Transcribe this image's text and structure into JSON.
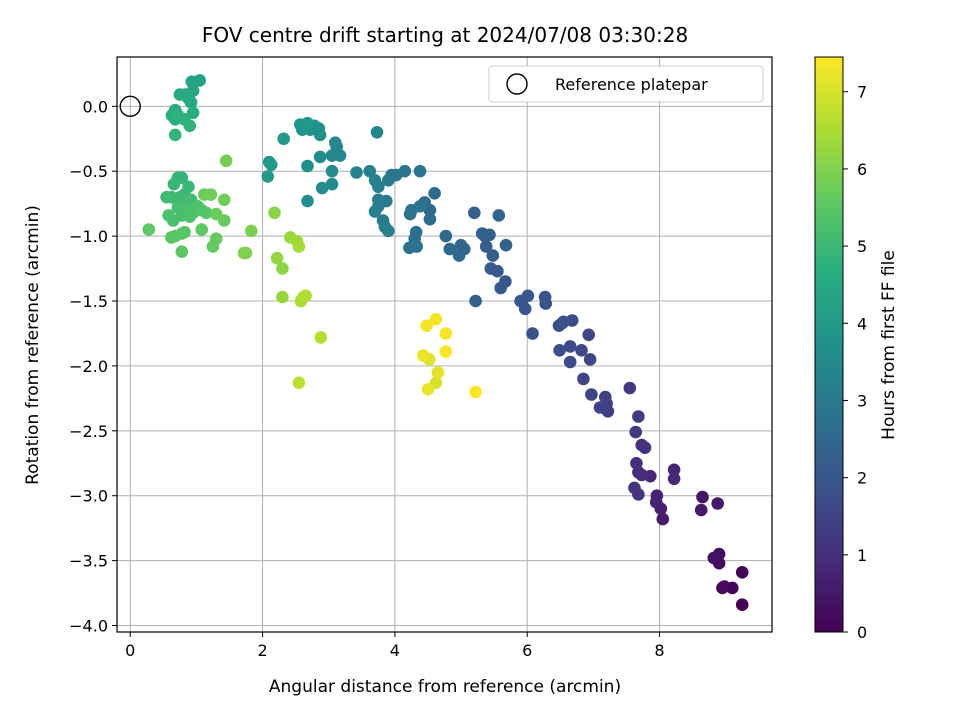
{
  "chart_data": {
    "type": "scatter",
    "title": "FOV centre drift starting at 2024/07/08 03:30:28",
    "xlabel": "Angular distance from reference (arcmin)",
    "ylabel": "Rotation from reference (arcmin)",
    "xlim": [
      -0.2,
      9.7
    ],
    "ylim": [
      -4.05,
      0.38
    ],
    "xticks": [
      0,
      2,
      4,
      6,
      8
    ],
    "yticks": [
      0.0,
      -0.5,
      -1.0,
      -1.5,
      -2.0,
      -2.5,
      -3.0,
      -3.5,
      -4.0
    ],
    "grid": true,
    "legend": {
      "position": "top-right",
      "entries": [
        "Reference platepar"
      ]
    },
    "reference_point": {
      "x": 0.0,
      "y": 0.0,
      "marker": "open-circle"
    },
    "colorbar": {
      "label": "Hours from first FF file",
      "colormap": "viridis",
      "range": [
        0,
        7.45
      ],
      "ticks": [
        0,
        1,
        2,
        3,
        4,
        5,
        6,
        7
      ]
    },
    "color_value": "hours from first FF file",
    "points": [
      [
        9.25,
        -3.84,
        0.0
      ],
      [
        9.25,
        -3.59,
        0.05
      ],
      [
        9.1,
        -3.71,
        0.1
      ],
      [
        8.98,
        -3.7,
        0.15
      ],
      [
        8.95,
        -3.71,
        0.2
      ],
      [
        8.9,
        -3.52,
        0.25
      ],
      [
        8.9,
        -3.45,
        0.3
      ],
      [
        8.82,
        -3.48,
        0.35
      ],
      [
        8.65,
        -3.01,
        0.42
      ],
      [
        8.63,
        -3.11,
        0.5
      ],
      [
        8.88,
        -3.06,
        0.55
      ],
      [
        8.05,
        -3.18,
        0.6
      ],
      [
        8.02,
        -3.1,
        0.65
      ],
      [
        7.96,
        -3.0,
        0.7
      ],
      [
        7.95,
        -3.05,
        0.75
      ],
      [
        7.86,
        -2.85,
        0.8
      ],
      [
        8.22,
        -2.8,
        0.82
      ],
      [
        8.22,
        -2.87,
        0.85
      ],
      [
        7.73,
        -2.84,
        0.9
      ],
      [
        7.68,
        -2.82,
        0.95
      ],
      [
        7.65,
        -2.75,
        1.0
      ],
      [
        7.73,
        -2.61,
        1.03
      ],
      [
        7.78,
        -2.63,
        1.06
      ],
      [
        7.68,
        -2.99,
        1.1
      ],
      [
        7.62,
        -2.94,
        1.15
      ],
      [
        7.64,
        -2.51,
        1.2
      ],
      [
        7.55,
        -2.17,
        1.23
      ],
      [
        7.68,
        -2.39,
        1.28
      ],
      [
        7.22,
        -2.35,
        1.32
      ],
      [
        7.2,
        -2.29,
        1.36
      ],
      [
        7.18,
        -2.24,
        1.4
      ],
      [
        7.1,
        -2.32,
        1.44
      ],
      [
        6.97,
        -2.22,
        1.48
      ],
      [
        6.85,
        -2.1,
        1.52
      ],
      [
        6.95,
        -1.95,
        1.55
      ],
      [
        6.82,
        -1.88,
        1.58
      ],
      [
        6.93,
        -1.76,
        1.62
      ],
      [
        6.65,
        -1.85,
        1.65
      ],
      [
        6.65,
        -1.97,
        1.68
      ],
      [
        6.68,
        -1.65,
        1.72
      ],
      [
        6.49,
        -1.88,
        1.75
      ],
      [
        6.48,
        -1.69,
        1.78
      ],
      [
        6.53,
        -1.67,
        1.8
      ],
      [
        6.55,
        -1.66,
        1.83
      ],
      [
        6.27,
        -1.47,
        1.86
      ],
      [
        6.28,
        -1.52,
        1.89
      ],
      [
        6.08,
        -1.75,
        1.92
      ],
      [
        5.97,
        -1.56,
        1.95
      ],
      [
        5.9,
        -1.5,
        1.98
      ],
      [
        5.92,
        -1.5,
        2.0
      ],
      [
        6.01,
        -1.46,
        2.03
      ],
      [
        5.67,
        -1.35,
        2.05
      ],
      [
        5.6,
        -1.4,
        2.08
      ],
      [
        5.55,
        -1.27,
        2.1
      ],
      [
        5.45,
        -1.25,
        2.13
      ],
      [
        5.48,
        -1.15,
        2.16
      ],
      [
        5.38,
        -1.08,
        2.19
      ],
      [
        5.36,
        -1.0,
        2.22
      ],
      [
        5.32,
        -0.98,
        2.25
      ],
      [
        5.43,
        -0.99,
        2.27
      ],
      [
        5.22,
        -1.5,
        2.3
      ],
      [
        5.68,
        -1.07,
        2.33
      ],
      [
        5.2,
        -0.82,
        2.36
      ],
      [
        5.57,
        -0.84,
        2.39
      ],
      [
        5.0,
        -1.07,
        2.42
      ],
      [
        5.05,
        -1.1,
        2.45
      ],
      [
        4.97,
        -1.15,
        2.48
      ],
      [
        4.83,
        -1.1,
        2.51
      ],
      [
        4.77,
        -1.0,
        2.54
      ],
      [
        4.6,
        -0.67,
        2.57
      ],
      [
        4.53,
        -0.8,
        2.6
      ],
      [
        4.45,
        -0.74,
        2.63
      ],
      [
        4.53,
        -0.87,
        2.66
      ],
      [
        4.3,
        -1.02,
        2.69
      ],
      [
        4.32,
        -0.97,
        2.72
      ],
      [
        4.22,
        -1.09,
        2.75
      ],
      [
        4.33,
        -1.08,
        2.77
      ],
      [
        4.23,
        -0.83,
        2.8
      ],
      [
        4.25,
        -0.8,
        2.83
      ],
      [
        4.38,
        -0.77,
        2.86
      ],
      [
        4.38,
        -0.5,
        2.89
      ],
      [
        4.15,
        -0.5,
        2.92
      ],
      [
        4.02,
        -0.53,
        2.95
      ],
      [
        3.95,
        -0.53,
        2.98
      ],
      [
        3.9,
        -0.57,
        3.0
      ],
      [
        3.87,
        -0.73,
        3.03
      ],
      [
        3.75,
        -0.72,
        3.06
      ],
      [
        3.75,
        -0.77,
        3.09
      ],
      [
        3.82,
        -0.88,
        3.12
      ],
      [
        3.9,
        -0.96,
        3.15
      ],
      [
        3.85,
        -0.93,
        3.18
      ],
      [
        3.7,
        -0.81,
        3.21
      ],
      [
        3.75,
        -0.62,
        3.24
      ],
      [
        3.7,
        -0.57,
        3.27
      ],
      [
        3.62,
        -0.5,
        3.3
      ],
      [
        3.42,
        -0.51,
        3.33
      ],
      [
        3.73,
        -0.2,
        3.36
      ],
      [
        3.17,
        -0.38,
        3.39
      ],
      [
        3.12,
        -0.31,
        3.42
      ],
      [
        3.1,
        -0.28,
        3.45
      ],
      [
        3.05,
        -0.38,
        3.48
      ],
      [
        3.05,
        -0.5,
        3.51
      ],
      [
        3.05,
        -0.6,
        3.54
      ],
      [
        2.9,
        -0.63,
        3.57
      ],
      [
        2.87,
        -0.39,
        3.6
      ],
      [
        2.68,
        -0.46,
        3.63
      ],
      [
        2.68,
        -0.73,
        3.66
      ],
      [
        2.85,
        -0.17,
        3.69
      ],
      [
        2.87,
        -0.22,
        3.72
      ],
      [
        2.78,
        -0.15,
        3.75
      ],
      [
        2.72,
        -0.18,
        3.78
      ],
      [
        2.62,
        -0.15,
        3.81
      ],
      [
        2.57,
        -0.14,
        3.85
      ],
      [
        2.6,
        -0.18,
        3.88
      ],
      [
        2.68,
        -0.13,
        3.91
      ],
      [
        2.32,
        -0.25,
        3.94
      ],
      [
        2.1,
        -0.43,
        3.98
      ],
      [
        2.13,
        -0.45,
        4.0
      ],
      [
        2.08,
        -0.54,
        4.03
      ],
      [
        1.05,
        0.2,
        4.25
      ],
      [
        0.93,
        0.19,
        4.3
      ],
      [
        0.95,
        0.12,
        4.35
      ],
      [
        0.88,
        0.06,
        4.4
      ],
      [
        0.92,
        0.03,
        4.45
      ],
      [
        0.75,
        0.09,
        4.5
      ],
      [
        0.83,
        0.09,
        4.55
      ],
      [
        0.95,
        -0.05,
        4.58
      ],
      [
        0.68,
        -0.03,
        4.62
      ],
      [
        0.63,
        -0.07,
        4.65
      ],
      [
        0.68,
        -0.1,
        4.68
      ],
      [
        0.72,
        -0.07,
        4.72
      ],
      [
        0.82,
        -0.1,
        4.75
      ],
      [
        0.9,
        -0.15,
        4.78
      ],
      [
        0.68,
        -0.22,
        4.82
      ],
      [
        0.78,
        -0.55,
        4.85
      ],
      [
        0.72,
        -0.55,
        4.88
      ],
      [
        0.66,
        -0.6,
        4.92
      ],
      [
        0.88,
        -0.62,
        4.95
      ],
      [
        0.82,
        -0.68,
        4.98
      ],
      [
        0.75,
        -0.7,
        5.0
      ],
      [
        0.7,
        -0.72,
        5.02
      ],
      [
        0.62,
        -0.7,
        5.05
      ],
      [
        0.55,
        -0.7,
        5.08
      ],
      [
        0.85,
        -0.75,
        5.1
      ],
      [
        0.92,
        -0.72,
        5.12
      ],
      [
        0.8,
        -0.8,
        5.15
      ],
      [
        0.72,
        -0.78,
        5.18
      ],
      [
        0.78,
        -0.84,
        5.2
      ],
      [
        0.88,
        -0.8,
        5.22
      ],
      [
        0.65,
        -0.88,
        5.25
      ],
      [
        0.58,
        -0.84,
        5.28
      ],
      [
        0.9,
        -0.85,
        5.3
      ],
      [
        0.95,
        -0.82,
        5.32
      ],
      [
        1.02,
        -0.77,
        5.35
      ],
      [
        1.08,
        -0.8,
        5.38
      ],
      [
        1.15,
        -0.82,
        5.4
      ],
      [
        0.82,
        -0.97,
        5.42
      ],
      [
        0.78,
        -0.98,
        5.45
      ],
      [
        0.68,
        -1.0,
        5.48
      ],
      [
        0.62,
        -1.01,
        5.5
      ],
      [
        0.78,
        -1.12,
        5.53
      ],
      [
        0.28,
        -0.95,
        5.56
      ],
      [
        1.08,
        -0.95,
        5.6
      ],
      [
        1.25,
        -1.08,
        5.63
      ],
      [
        1.3,
        -1.02,
        5.66
      ],
      [
        1.42,
        -0.88,
        5.69
      ],
      [
        1.3,
        -0.83,
        5.72
      ],
      [
        1.12,
        -0.68,
        5.75
      ],
      [
        1.22,
        -0.68,
        5.78
      ],
      [
        1.42,
        -0.72,
        5.8
      ],
      [
        1.45,
        -0.42,
        5.85
      ],
      [
        1.75,
        -1.13,
        5.9
      ],
      [
        1.83,
        -0.96,
        5.95
      ],
      [
        1.72,
        -1.13,
        6.0
      ],
      [
        2.18,
        -0.82,
        6.1
      ],
      [
        2.3,
        -1.25,
        6.15
      ],
      [
        2.22,
        -1.17,
        6.2
      ],
      [
        2.3,
        -1.47,
        6.25
      ],
      [
        2.42,
        -1.01,
        6.3
      ],
      [
        2.52,
        -1.04,
        6.35
      ],
      [
        2.55,
        -1.08,
        6.4
      ],
      [
        2.62,
        -1.47,
        6.45
      ],
      [
        2.58,
        -1.5,
        6.5
      ],
      [
        2.65,
        -1.46,
        6.55
      ],
      [
        2.88,
        -1.78,
        6.6
      ],
      [
        2.55,
        -2.13,
        6.7
      ],
      [
        4.62,
        -2.13,
        7.0
      ],
      [
        4.52,
        -1.95,
        7.1
      ],
      [
        4.65,
        -2.05,
        7.15
      ],
      [
        4.5,
        -2.18,
        7.2
      ],
      [
        4.43,
        -1.92,
        7.25
      ],
      [
        4.48,
        -1.69,
        7.3
      ],
      [
        4.62,
        -1.64,
        7.35
      ],
      [
        4.77,
        -1.75,
        7.38
      ],
      [
        4.77,
        -1.89,
        7.4
      ],
      [
        5.22,
        -2.2,
        7.45
      ]
    ]
  }
}
